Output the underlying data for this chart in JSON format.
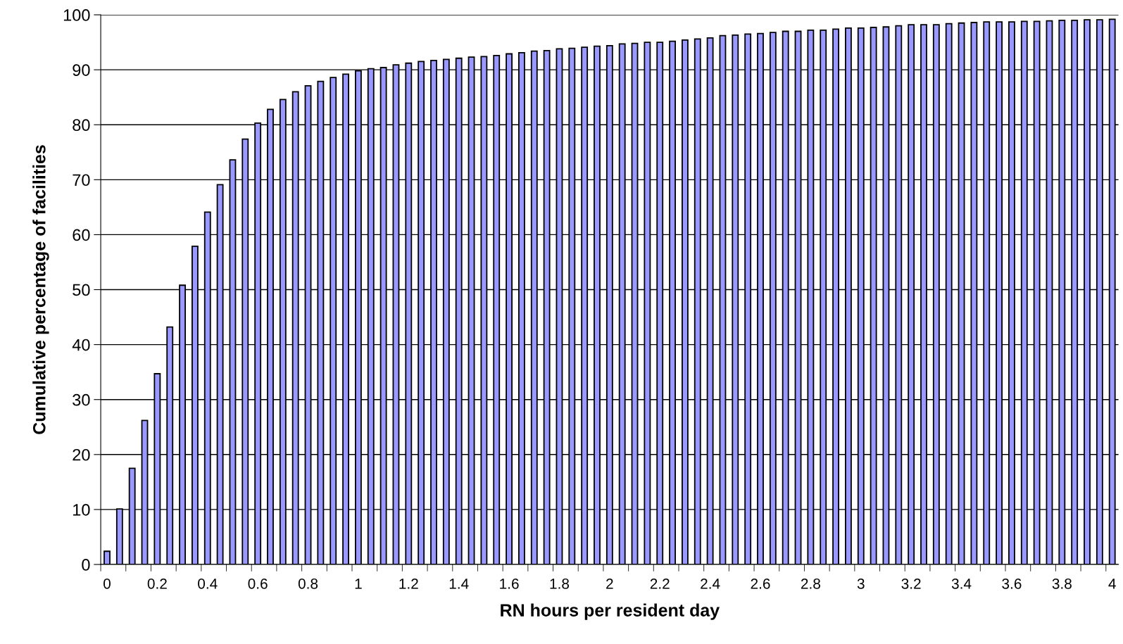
{
  "chart_data": {
    "type": "bar",
    "xlabel": "RN hours per resident day",
    "ylabel": "Cumulative percentage of facilities",
    "categories": [
      "0",
      null,
      null,
      null,
      "0.2",
      null,
      null,
      null,
      "0.4",
      null,
      null,
      null,
      "0.6",
      null,
      null,
      null,
      "0.8",
      null,
      null,
      null,
      "1",
      null,
      null,
      null,
      "1.2",
      null,
      null,
      null,
      "1.4",
      null,
      null,
      null,
      "1.6",
      null,
      null,
      null,
      "1.8",
      null,
      null,
      null,
      "2",
      null,
      null,
      null,
      "2.2",
      null,
      null,
      null,
      "2.4",
      null,
      null,
      null,
      "2.6",
      null,
      null,
      null,
      "2.8",
      null,
      null,
      null,
      "3",
      null,
      null,
      null,
      "3.2",
      null,
      null,
      null,
      "3.4",
      null,
      null,
      null,
      "3.6",
      null,
      null,
      null,
      "3.8",
      null,
      null,
      null,
      "4"
    ],
    "values": [
      2.4,
      10.1,
      17.5,
      26.2,
      34.7,
      43.2,
      50.8,
      57.9,
      64.1,
      69.1,
      73.6,
      77.4,
      80.3,
      82.8,
      84.6,
      86.0,
      87.1,
      87.9,
      88.6,
      89.2,
      89.8,
      90.2,
      90.4,
      90.9,
      91.2,
      91.5,
      91.7,
      91.9,
      92.1,
      92.3,
      92.4,
      92.6,
      92.9,
      93.1,
      93.4,
      93.5,
      93.8,
      93.9,
      94.1,
      94.3,
      94.4,
      94.7,
      94.8,
      95.0,
      95.0,
      95.2,
      95.4,
      95.6,
      95.8,
      96.2,
      96.3,
      96.5,
      96.6,
      96.8,
      97.0,
      97.0,
      97.2,
      97.2,
      97.4,
      97.6,
      97.6,
      97.7,
      97.8,
      98.0,
      98.2,
      98.2,
      98.2,
      98.4,
      98.5,
      98.6,
      98.7,
      98.7,
      98.7,
      98.8,
      98.8,
      98.9,
      99.0,
      99.0,
      99.1,
      99.1,
      99.2
    ],
    "color": "#9999ff",
    "ylim": [
      0,
      100
    ],
    "yticks": [
      0,
      10,
      20,
      30,
      40,
      50,
      60,
      70,
      80,
      90,
      100
    ],
    "grid": "y"
  }
}
